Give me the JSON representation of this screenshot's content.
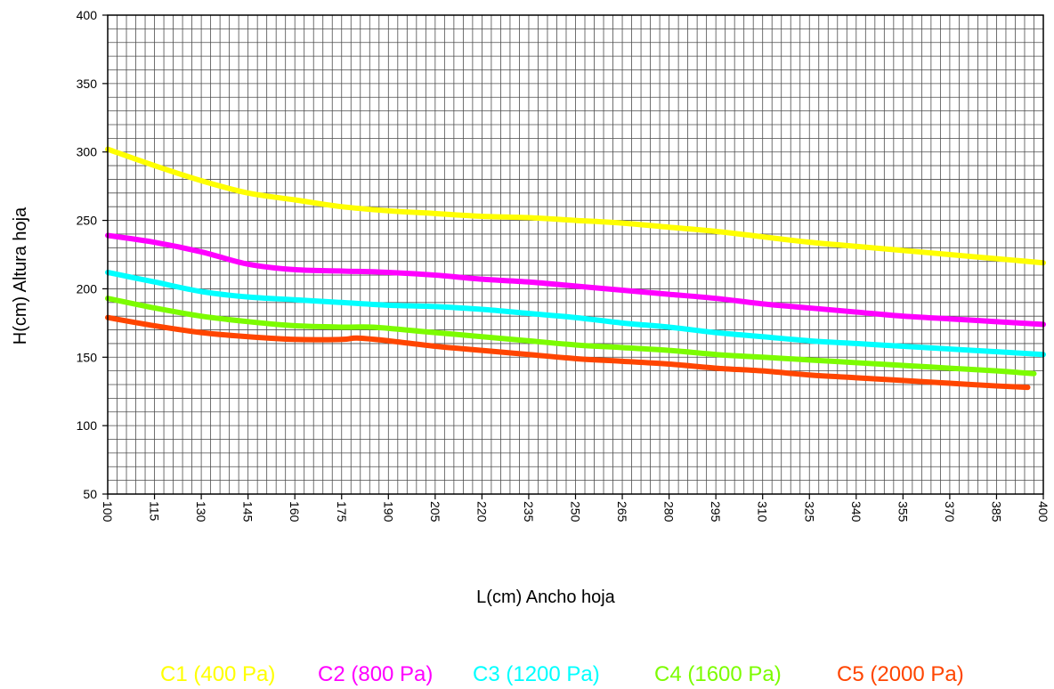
{
  "chart_data": {
    "type": "line",
    "xlabel": "L(cm) Ancho hoja",
    "ylabel": "H(cm) Altura hoja",
    "xlim": [
      100,
      400
    ],
    "ylim": [
      50,
      400
    ],
    "x_ticks": [
      "100",
      "115",
      "130",
      "145",
      "160",
      "175",
      "190",
      "205",
      "220",
      "235",
      "250",
      "265",
      "280",
      "295",
      "310",
      "325",
      "340",
      "355",
      "370",
      "385",
      "400"
    ],
    "y_ticks": [
      "50",
      "100",
      "150",
      "200",
      "250",
      "300",
      "350",
      "400"
    ],
    "x_minor_step": 3,
    "y_minor_step": 10,
    "grid": true,
    "legend_position": "bottom",
    "series": [
      {
        "name": "C1 (400 Pa)",
        "color": "#ffff00",
        "points": [
          [
            100,
            302
          ],
          [
            115,
            290
          ],
          [
            130,
            279
          ],
          [
            145,
            270
          ],
          [
            160,
            265
          ],
          [
            175,
            260
          ],
          [
            190,
            257
          ],
          [
            205,
            255
          ],
          [
            220,
            253
          ],
          [
            235,
            252
          ],
          [
            250,
            250
          ],
          [
            265,
            248
          ],
          [
            280,
            245
          ],
          [
            295,
            242
          ],
          [
            310,
            238
          ],
          [
            325,
            234
          ],
          [
            340,
            231
          ],
          [
            355,
            228
          ],
          [
            370,
            225
          ],
          [
            385,
            222
          ],
          [
            400,
            219
          ]
        ]
      },
      {
        "name": "C2 (800 Pa)",
        "color": "#ff00ff",
        "points": [
          [
            100,
            239
          ],
          [
            115,
            234
          ],
          [
            130,
            227
          ],
          [
            145,
            218
          ],
          [
            160,
            214
          ],
          [
            175,
            213
          ],
          [
            190,
            212
          ],
          [
            205,
            210
          ],
          [
            220,
            207
          ],
          [
            235,
            205
          ],
          [
            250,
            202
          ],
          [
            265,
            199
          ],
          [
            280,
            196
          ],
          [
            295,
            193
          ],
          [
            310,
            189
          ],
          [
            325,
            186
          ],
          [
            340,
            183
          ],
          [
            355,
            180
          ],
          [
            370,
            178
          ],
          [
            385,
            176
          ],
          [
            400,
            174
          ]
        ]
      },
      {
        "name": "C3 (1200 Pa)",
        "color": "#00ffff",
        "points": [
          [
            100,
            212
          ],
          [
            115,
            205
          ],
          [
            130,
            198
          ],
          [
            145,
            194
          ],
          [
            160,
            192
          ],
          [
            175,
            190
          ],
          [
            190,
            188
          ],
          [
            205,
            187
          ],
          [
            220,
            185
          ],
          [
            235,
            182
          ],
          [
            250,
            179
          ],
          [
            265,
            175
          ],
          [
            280,
            172
          ],
          [
            295,
            168
          ],
          [
            310,
            165
          ],
          [
            325,
            162
          ],
          [
            340,
            160
          ],
          [
            355,
            158
          ],
          [
            370,
            156
          ],
          [
            385,
            154
          ],
          [
            400,
            152
          ]
        ]
      },
      {
        "name": "C4 (1600 Pa)",
        "color": "#7cfc00",
        "points": [
          [
            100,
            193
          ],
          [
            115,
            186
          ],
          [
            130,
            180
          ],
          [
            145,
            176
          ],
          [
            160,
            173
          ],
          [
            175,
            172
          ],
          [
            185,
            172
          ],
          [
            200,
            169
          ],
          [
            220,
            165
          ],
          [
            235,
            162
          ],
          [
            250,
            159
          ],
          [
            265,
            157
          ],
          [
            280,
            155
          ],
          [
            295,
            152
          ],
          [
            310,
            150
          ],
          [
            325,
            148
          ],
          [
            340,
            146
          ],
          [
            355,
            144
          ],
          [
            370,
            142
          ],
          [
            385,
            140
          ],
          [
            397,
            138
          ]
        ]
      },
      {
        "name": "C5 (2000 Pa)",
        "color": "#ff4500",
        "points": [
          [
            100,
            179
          ],
          [
            115,
            173
          ],
          [
            130,
            168
          ],
          [
            145,
            165
          ],
          [
            160,
            163
          ],
          [
            175,
            163
          ],
          [
            180,
            164
          ],
          [
            190,
            162
          ],
          [
            205,
            158
          ],
          [
            220,
            155
          ],
          [
            235,
            152
          ],
          [
            250,
            149
          ],
          [
            265,
            147
          ],
          [
            280,
            145
          ],
          [
            295,
            142
          ],
          [
            310,
            140
          ],
          [
            325,
            137
          ],
          [
            340,
            135
          ],
          [
            355,
            133
          ],
          [
            370,
            131
          ],
          [
            385,
            129
          ],
          [
            395,
            128
          ]
        ]
      }
    ]
  }
}
